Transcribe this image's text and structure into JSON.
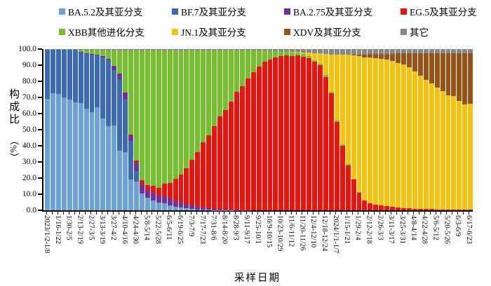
{
  "legend": {
    "items": [
      {
        "key": "ba52",
        "label": "BA.5.2及其亚分支",
        "color": "#6DA2D5"
      },
      {
        "key": "bf7",
        "label": "BF.7及其亚分支",
        "color": "#3D6BB3"
      },
      {
        "key": "ba275",
        "label": "BA.2.75及其亚分支",
        "color": "#7030A0"
      },
      {
        "key": "eg5",
        "label": "EG.5及其亚分支",
        "color": "#E9140E"
      },
      {
        "key": "xbb",
        "label": "XBB其他进化分支",
        "color": "#73BF2E"
      },
      {
        "key": "jn1",
        "label": "JN.1及其亚分支",
        "color": "#F2C411"
      },
      {
        "key": "xdv",
        "label": "XDV及其亚分支",
        "color": "#975217"
      },
      {
        "key": "other",
        "label": "其它",
        "color": "#878787"
      }
    ]
  },
  "y_axis": {
    "title": "构成比",
    "unit": "（%）",
    "ticks": [
      "100.0",
      "90.0",
      "80.0",
      "70.0",
      "60.0",
      "50.0",
      "40.0",
      "30.0",
      "20.0",
      "10.0",
      "0.0"
    ]
  },
  "x_axis": {
    "title": "采样日期"
  },
  "chart_data": {
    "type": "bar",
    "stacked": true,
    "n_bars": 77,
    "ylim": [
      0,
      100
    ],
    "y_tick_step": 10,
    "grid": false,
    "legend_position": "top",
    "x_label_every_n_bars": 2,
    "x_tick_labels": [
      "2023/1/2-1/8",
      "1/16-1/22",
      "1/30-2/5",
      "2/13-2/19",
      "2/27-3/5",
      "3/13-3/19",
      "3/27-4/2",
      "4/10-4/16",
      "4/24-4/30",
      "5/8-5/14",
      "5/22-5/28",
      "6/5-6/11",
      "6/19-6/25",
      "7/3-7/9",
      "7/17-7/23",
      "7/31-8/6",
      "8/14-8/20",
      "8/28-9/3",
      "9/11-9/17",
      "9/25-10/1",
      "10/9-10/15",
      "10/23-10/29",
      "11/6-11/12",
      "11/20-11/26",
      "12/4-12/10",
      "12/18-12/24",
      "2024/1/1-1/7",
      "1/15-1/21",
      "1/29-2/4",
      "2/12-2/18",
      "2/26-3/3",
      "3/11-3/17",
      "3/25-3/31",
      "4/8-4/14",
      "4/22-4/28",
      "5/6-5/12",
      "5/20-5/26",
      "6/3-6/9",
      "6/17-6/23"
    ],
    "series": [
      {
        "key": "ba52",
        "name": "BA.5.2及其亚分支",
        "color": "#6DA2D5",
        "values": [
          69,
          72.5,
          72,
          70,
          68.5,
          67,
          66.5,
          63,
          61,
          64,
          57,
          52,
          52.5,
          37,
          36,
          19,
          18,
          10.5,
          7.8,
          6,
          4.9,
          4.2,
          3.2,
          2.2,
          1.6,
          1.2,
          0.8,
          0.6,
          0.4,
          0.3,
          0.2,
          0.2,
          0.1,
          0.1,
          0,
          0,
          0,
          0,
          0,
          0,
          0,
          0,
          0,
          0,
          0,
          0,
          0,
          0,
          0,
          0,
          0,
          0,
          0,
          0,
          0,
          0,
          0,
          0,
          0,
          0,
          0,
          0,
          0,
          0,
          0,
          0,
          0,
          0,
          0,
          0,
          0,
          0,
          0,
          0,
          0,
          0,
          0
        ]
      },
      {
        "key": "bf7",
        "name": "BF.7及其亚分支",
        "color": "#3D6BB3",
        "values": [
          30.5,
          27,
          27.5,
          29.5,
          31,
          32.5,
          31.5,
          34,
          35.5,
          32,
          38,
          41.5,
          34.5,
          44.5,
          32.5,
          24,
          6.5,
          0,
          0,
          0,
          0,
          0,
          0,
          0,
          0,
          0,
          0,
          0,
          0,
          0,
          0,
          0,
          0,
          0,
          0,
          0,
          0,
          0,
          0,
          0,
          0,
          0,
          0,
          0,
          0,
          0,
          0,
          0,
          0,
          0,
          0,
          0,
          0,
          0,
          0,
          0,
          0,
          0,
          0,
          0,
          0,
          0,
          0,
          0,
          0,
          0,
          0,
          0,
          0,
          0,
          0,
          0,
          0,
          0,
          0,
          0,
          0
        ]
      },
      {
        "key": "ba275",
        "name": "BA.2.75及其亚分支",
        "color": "#7030A0",
        "values": [
          0,
          0,
          0,
          0,
          0,
          0,
          0.2,
          0.3,
          0.3,
          0.4,
          0.5,
          0.6,
          2.5,
          3.2,
          4.4,
          3.6,
          5,
          5.8,
          5,
          4.7,
          4.4,
          4.4,
          4.3,
          3.6,
          3,
          2.6,
          2.2,
          1.6,
          1.2,
          0.9,
          0.6,
          0.4,
          0.3,
          0.2,
          0.2,
          0.1,
          0.1,
          0,
          0,
          0,
          0,
          0,
          0,
          0,
          0,
          0,
          0,
          0,
          0,
          0,
          0,
          0,
          0,
          0,
          0,
          0,
          0,
          0,
          0,
          0,
          0,
          0,
          0,
          0,
          0,
          0,
          0,
          0,
          0,
          0,
          0,
          0,
          0,
          0,
          0,
          0,
          0
        ]
      },
      {
        "key": "eg5",
        "name": "EG.5及其亚分支",
        "color": "#E9140E",
        "values": [
          0,
          0,
          0,
          0,
          0,
          0,
          0,
          0,
          0,
          0,
          0,
          0,
          0,
          0,
          0,
          0.4,
          1.3,
          2.4,
          3,
          4.4,
          4.6,
          7.9,
          9.4,
          14,
          17.4,
          22.2,
          28.4,
          33.8,
          40.6,
          45.3,
          51.5,
          57.5,
          62,
          67.2,
          73.1,
          76.8,
          81.8,
          85.5,
          89.2,
          92,
          93.5,
          95,
          95.7,
          96,
          95.7,
          96,
          95.4,
          94.2,
          92,
          89.9,
          82.7,
          72.5,
          55,
          40,
          28,
          19,
          11,
          6,
          4.5,
          3.5,
          3.2,
          2.6,
          2.2,
          1.8,
          1.5,
          1.2,
          1,
          0.9,
          0.8,
          0.7,
          0.6,
          0.6,
          0.5,
          0.5,
          0.4,
          0.4,
          0.3
        ]
      },
      {
        "key": "xbb",
        "name": "XBB其他进化分支",
        "color": "#73BF2E",
        "values": [
          0,
          0,
          0,
          0,
          0,
          0,
          1.3,
          2,
          2.5,
          3,
          3.8,
          5.2,
          9.8,
          14.6,
          26.4,
          52.3,
          68.5,
          80.6,
          83.5,
          84.2,
          85.4,
          82.8,
          82.4,
          79.5,
          77.3,
          73.3,
          67.9,
          63.3,
          57.1,
          52.8,
          47,
          41.2,
          36.9,
          31.8,
          26,
          22.4,
          17.4,
          13.8,
          10,
          7,
          5,
          3.5,
          2.8,
          2.5,
          2.3,
          1.8,
          1.6,
          1.4,
          1.2,
          1,
          1.3,
          1,
          0.8,
          0.8,
          0.5,
          0.4,
          0.3,
          0.2,
          0,
          0,
          0,
          0,
          0,
          0,
          0,
          0,
          0,
          0,
          0,
          0,
          0,
          0,
          0,
          0,
          0,
          0,
          0
        ]
      },
      {
        "key": "jn1",
        "name": "JN.1及其亚分支",
        "color": "#F2C411",
        "values": [
          0,
          0,
          0,
          0,
          0,
          0,
          0,
          0,
          0,
          0,
          0,
          0,
          0,
          0,
          0,
          0,
          0,
          0,
          0,
          0,
          0,
          0,
          0,
          0,
          0,
          0,
          0,
          0,
          0,
          0,
          0,
          0,
          0,
          0,
          0,
          0,
          0,
          0,
          0,
          0,
          0,
          0,
          0,
          0,
          0.2,
          0.4,
          1,
          2.2,
          4.3,
          6.3,
          13,
          23.2,
          40.7,
          55.7,
          68,
          76.6,
          84.2,
          88.7,
          90.3,
          91,
          90.8,
          90.9,
          90.3,
          89.7,
          89,
          87.3,
          84.9,
          82.5,
          80.2,
          78.1,
          75.7,
          73.5,
          70.8,
          70.3,
          67.5,
          65.4,
          66
        ]
      },
      {
        "key": "xdv",
        "name": "XDV及其亚分支",
        "color": "#975217",
        "values": [
          0,
          0,
          0,
          0,
          0,
          0,
          0,
          0,
          0,
          0,
          0,
          0,
          0,
          0,
          0,
          0,
          0,
          0,
          0,
          0,
          0,
          0,
          0,
          0,
          0,
          0,
          0,
          0,
          0,
          0,
          0,
          0,
          0,
          0,
          0,
          0,
          0,
          0,
          0,
          0,
          0,
          0,
          0,
          0,
          0,
          0,
          0,
          0,
          0,
          0,
          0,
          0,
          0,
          0,
          0,
          0.5,
          1,
          1.6,
          2,
          2.5,
          3,
          3.5,
          4.5,
          5.7,
          6.8,
          8.8,
          11.4,
          13.9,
          16.3,
          18.5,
          21,
          23.2,
          26,
          26.5,
          29.4,
          31.5,
          31
        ]
      },
      {
        "key": "other",
        "name": "其它",
        "color": "#878787",
        "values": [
          0.5,
          0.5,
          0.5,
          0.5,
          0.5,
          0.5,
          0.5,
          0.7,
          0.7,
          0.6,
          0.7,
          0.7,
          0.7,
          0.7,
          0.7,
          0.7,
          0.7,
          0.7,
          0.7,
          0.7,
          0.7,
          0.7,
          0.7,
          0.7,
          0.7,
          0.7,
          0.7,
          0.7,
          0.7,
          0.7,
          0.7,
          0.7,
          0.7,
          0.7,
          0.7,
          0.7,
          0.7,
          0.7,
          0.8,
          1,
          1.5,
          1.5,
          1.5,
          1.5,
          1.8,
          1.8,
          2,
          2.2,
          2.5,
          2.8,
          3,
          3.3,
          3.5,
          3.5,
          3.5,
          3.5,
          3.5,
          3.5,
          3.2,
          3,
          3,
          3,
          3,
          2.8,
          2.7,
          2.7,
          2.7,
          2.7,
          2.7,
          2.7,
          2.7,
          2.7,
          2.7,
          2.7,
          2.7,
          2.7,
          2.7
        ]
      }
    ]
  }
}
